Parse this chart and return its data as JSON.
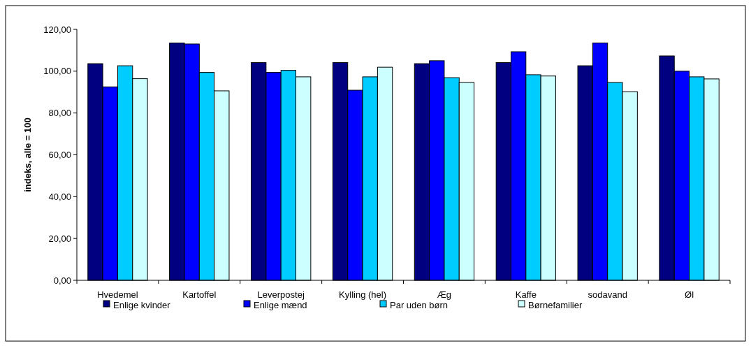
{
  "chart_data": {
    "type": "bar",
    "ylabel": "indeks, alle = 100",
    "categories": [
      "Hvedemel",
      "Kartoffel",
      "Leverpostej",
      "Kylling (hel)",
      "Æg",
      "Kaffe",
      "sodavand",
      "Øl"
    ],
    "series": [
      {
        "name": "Enlige kvinder",
        "color": "#000080",
        "values": [
          103.6,
          113.5,
          104.1,
          104.1,
          103.6,
          104.1,
          102.6,
          107.3
        ]
      },
      {
        "name": "Enlige mænd",
        "color": "#0000ff",
        "values": [
          92.5,
          113.0,
          99.4,
          90.9,
          105.0,
          109.3,
          113.5,
          100.0
        ]
      },
      {
        "name": "Par uden børn",
        "color": "#00ccff",
        "values": [
          102.6,
          99.4,
          100.4,
          97.3,
          96.9,
          98.3,
          94.6,
          97.3
        ]
      },
      {
        "name": "Børnefamilier",
        "color": "#ccffff",
        "values": [
          96.4,
          90.6,
          97.3,
          101.9,
          94.6,
          97.7,
          90.2,
          96.3
        ]
      }
    ],
    "ylim": [
      0,
      120
    ],
    "yticks": [
      {
        "value": 0,
        "label": "0,00"
      },
      {
        "value": 20,
        "label": "20,00"
      },
      {
        "value": 40,
        "label": "40,00"
      },
      {
        "value": 60,
        "label": "60,00"
      },
      {
        "value": 80,
        "label": "80,00"
      },
      {
        "value": 100,
        "label": "100,00"
      },
      {
        "value": 120,
        "label": "120,00"
      }
    ],
    "legend": "bottom"
  }
}
